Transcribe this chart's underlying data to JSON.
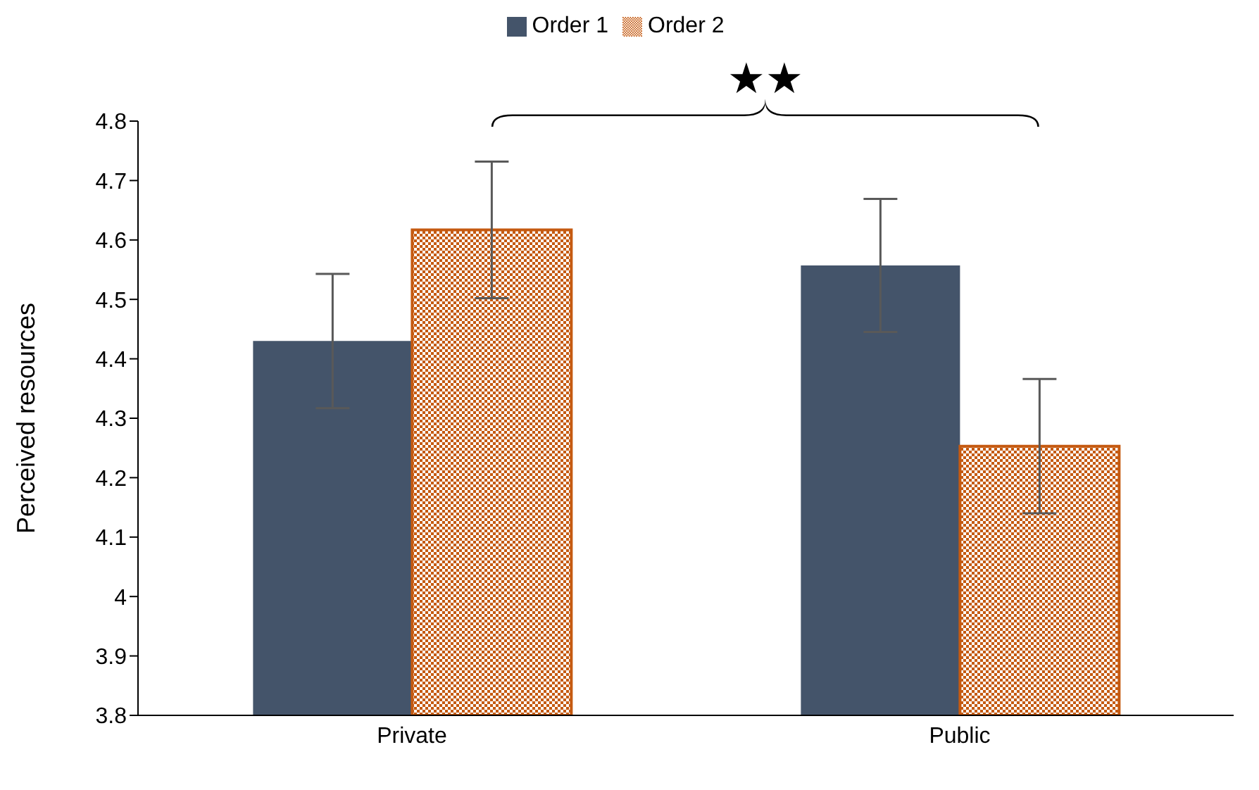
{
  "chart_data": {
    "type": "bar",
    "ylabel": "Perceived resources",
    "categories": [
      "Private",
      "Public"
    ],
    "series": [
      {
        "name": "Order 1",
        "color": "#44546a",
        "values": [
          4.43,
          4.557
        ],
        "errors": [
          0.113,
          0.112
        ]
      },
      {
        "name": "Order 2",
        "color": "#c55a11",
        "values": [
          4.617,
          4.253
        ],
        "errors": [
          0.115,
          0.113
        ]
      }
    ],
    "ylim": [
      3.8,
      4.8
    ],
    "yticks": [
      3.8,
      3.9,
      4,
      4.1,
      4.2,
      4.3,
      4.4,
      4.5,
      4.6,
      4.7,
      4.8
    ],
    "grid": false,
    "legend": "top",
    "annotations": [
      "★★"
    ]
  }
}
